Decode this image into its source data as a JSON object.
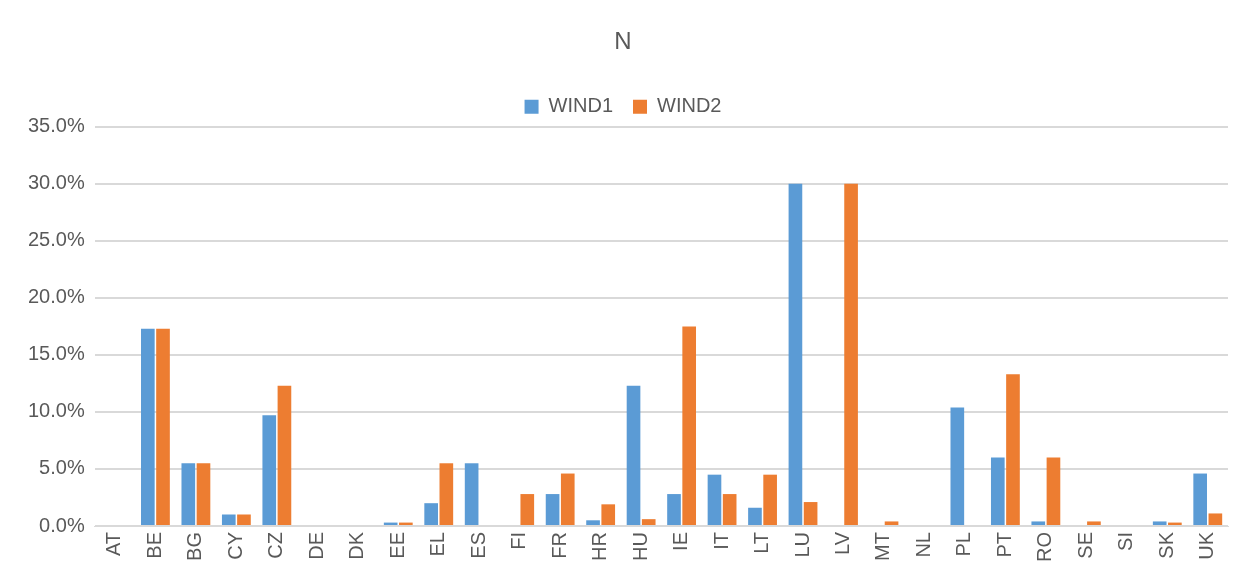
{
  "chart_data": {
    "type": "bar",
    "title": "N",
    "categories": [
      "AT",
      "BE",
      "BG",
      "CY",
      "CZ",
      "DE",
      "DK",
      "EE",
      "EL",
      "ES",
      "FI",
      "FR",
      "HR",
      "HU",
      "IE",
      "IT",
      "LT",
      "LU",
      "LV",
      "MT",
      "NL",
      "PL",
      "PT",
      "RO",
      "SE",
      "SI",
      "SK",
      "UK"
    ],
    "series": [
      {
        "name": "WIND1",
        "color": "#5b9bd5",
        "values": [
          0,
          17.3,
          5.5,
          1.0,
          9.7,
          0,
          0,
          0.3,
          2.0,
          5.5,
          0,
          2.8,
          0.5,
          12.3,
          2.8,
          4.5,
          1.6,
          30.0,
          0,
          0,
          0,
          10.4,
          6.0,
          0.4,
          0,
          0,
          0.4,
          4.6
        ]
      },
      {
        "name": "WIND2",
        "color": "#ed7d31",
        "values": [
          0,
          17.3,
          5.5,
          1.0,
          12.3,
          0,
          0,
          0.3,
          5.5,
          0,
          2.8,
          4.6,
          1.9,
          0.6,
          17.5,
          2.8,
          4.5,
          2.1,
          30.0,
          0.4,
          0,
          0,
          13.3,
          6.0,
          0.4,
          0,
          0.3,
          1.1
        ]
      }
    ],
    "ylim": [
      0,
      35
    ],
    "yticks": [
      {
        "value": 0,
        "label": "0.0%"
      },
      {
        "value": 5,
        "label": "5.0%"
      },
      {
        "value": 10,
        "label": "10.0%"
      },
      {
        "value": 15,
        "label": "15.0%"
      },
      {
        "value": 20,
        "label": "20.0%"
      },
      {
        "value": 25,
        "label": "25.0%"
      },
      {
        "value": 30,
        "label": "30.0%"
      },
      {
        "value": 35,
        "label": "35.0%"
      }
    ],
    "grid": "y",
    "legend": "top"
  }
}
